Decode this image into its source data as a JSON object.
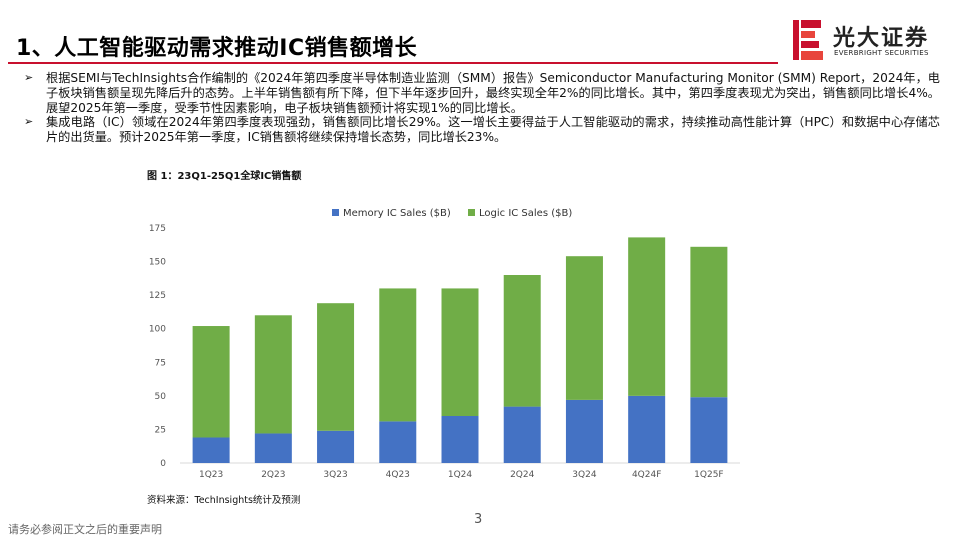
{
  "slide": {
    "title": "1、人工智能驱动需求推动IC销售额增长",
    "page_number": "3",
    "disclaimer": "请务必参阅正文之后的重要声明",
    "accent_color": "#c8102e"
  },
  "logo": {
    "name_cn": "光大证券",
    "name_en": "EVERBRIGHT SECURITIES",
    "icon": "everbright-logo-mark"
  },
  "bullets": [
    "根据SEMI与TechInsights合作编制的《2024年第四季度半导体制造业监测（SMM）报告》Semiconductor Manufacturing Monitor (SMM) Report，2024年，电子板块销售额呈现先降后升的态势。上半年销售额有所下降，但下半年逐步回升，最终实现全年2%的同比增长。其中，第四季度表现尤为突出，销售额同比增长4%。展望2025年第一季度，受季节性因素影响，电子板块销售额预计将实现1%的同比增长。",
    "集成电路（IC）领域在2024年第四季度表现强劲，销售额同比增长29%。这一增长主要得益于人工智能驱动的需求，持续推动高性能计算（HPC）和数据中心存储芯片的出货量。预计2025年第一季度，IC销售额将继续保持增长态势，同比增长23%。"
  ],
  "figure": {
    "caption": "图 1：23Q1-25Q1全球IC销售额",
    "source": "资料来源：TechInsights统计及预测"
  },
  "chart_data": {
    "type": "bar",
    "stacked": true,
    "title": "",
    "xlabel": "",
    "ylabel": "",
    "categories": [
      "1Q23",
      "2Q23",
      "3Q23",
      "4Q23",
      "1Q24",
      "2Q24",
      "3Q24",
      "4Q24F",
      "1Q25F"
    ],
    "series": [
      {
        "name": "Memory IC Sales ($B)",
        "color": "#4472c4",
        "values": [
          19,
          22,
          24,
          31,
          35,
          42,
          47,
          50,
          49
        ]
      },
      {
        "name": "Logic IC Sales ($B)",
        "color": "#70ad47",
        "values": [
          83,
          88,
          95,
          99,
          95,
          98,
          107,
          118,
          112
        ]
      }
    ],
    "ylim": [
      0,
      175
    ],
    "yticks": [
      0,
      25,
      50,
      75,
      100,
      125,
      150,
      175
    ],
    "grid": false,
    "legend_position": "top-center"
  }
}
